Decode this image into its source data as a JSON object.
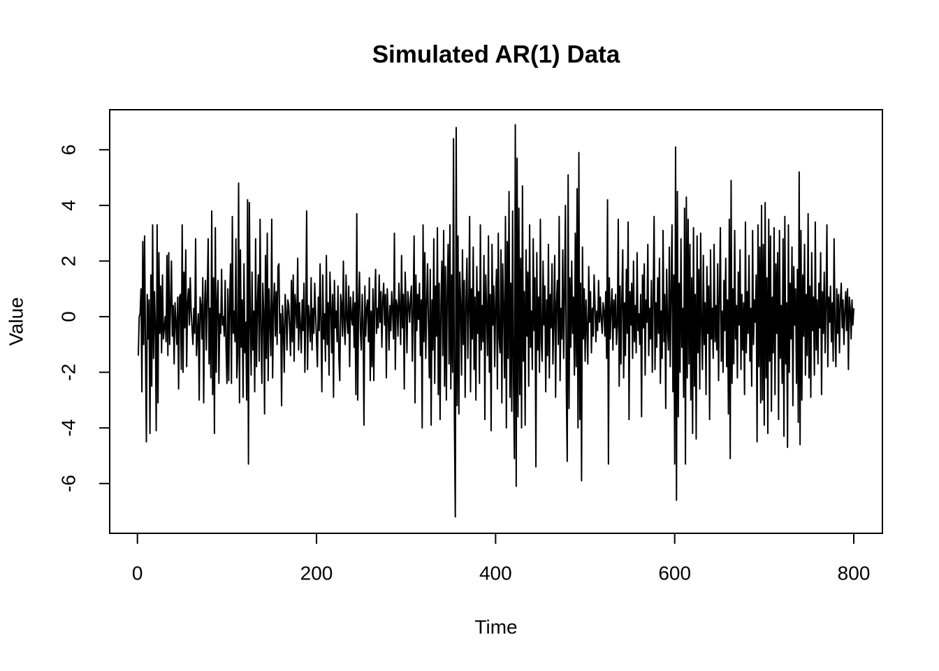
{
  "chart_data": {
    "type": "line",
    "title": "Simulated AR(1) Data",
    "xlabel": "Time",
    "ylabel": "Value",
    "color": "#000000",
    "xlim": [
      -30.96,
      831.96
    ],
    "xticks": [
      0,
      200,
      400,
      600,
      800
    ],
    "ylim": [
      -7.79,
      7.44
    ],
    "yticks": [
      -6,
      -4,
      -2,
      0,
      2,
      4,
      6
    ],
    "values": [
      -1.4,
      0.0,
      0.1,
      1.0,
      -2.7,
      2.7,
      -1.0,
      2.9,
      -1.1,
      -4.5,
      0.8,
      -0.8,
      0.6,
      -4.2,
      1.5,
      -2.5,
      3.3,
      -1.5,
      0.9,
      -0.3,
      -4.1,
      3.3,
      -3.1,
      2.3,
      -0.6,
      1.1,
      -1.3,
      1.5,
      -0.8,
      -0.4,
      0.0,
      -0.9,
      2.2,
      -1.4,
      2.3,
      -1.0,
      0.4,
      2.0,
      -0.7,
      0.4,
      -1.7,
      0.5,
      -0.2,
      -1.0,
      0.7,
      -2.6,
      0.7,
      0.8,
      -1.9,
      3.3,
      -2.0,
      1.6,
      -0.4,
      2.4,
      -1.8,
      0.5,
      1.0,
      -0.3,
      1.4,
      0.2,
      -0.4,
      -1.0,
      0.3,
      -0.6,
      2.8,
      -1.4,
      -0.6,
      0.1,
      -3.0,
      0.7,
      0.4,
      -0.8,
      1.4,
      -3.1,
      0.4,
      1.3,
      -1.2,
      0.7,
      2.8,
      -1.7,
      0.3,
      -2.2,
      3.8,
      -2.8,
      1.4,
      -4.2,
      3.2,
      -2.0,
      0.5,
      1.3,
      -2.4,
      0.1,
      -0.6,
      1.7,
      -0.3,
      0.0,
      -0.7,
      1.3,
      -1.1,
      -2.4,
      1.0,
      -2.3,
      0.6,
      1.9,
      -2.4,
      3.6,
      -0.6,
      0.2,
      -0.9,
      2.8,
      -2.2,
      -1.4,
      4.8,
      -3.1,
      2.4,
      -1.1,
      0.6,
      -2.9,
      1.9,
      -1.3,
      -0.2,
      -3.0,
      4.2,
      -5.3,
      4.1,
      -0.1,
      -2.1,
      1.6,
      -1.2,
      0.2,
      -2.7,
      2.8,
      -1.8,
      0.4,
      1.5,
      -1.6,
      3.5,
      -0.5,
      -2.4,
      1.2,
      0.2,
      -3.5,
      2.2,
      -1.5,
      3.0,
      -2.3,
      1.0,
      -0.2,
      -1.4,
      3.5,
      -2.2,
      0.3,
      1.2,
      -0.7,
      0.9,
      -1.0,
      1.8,
      1.9,
      -0.6,
      0.1,
      -3.2,
      0.4,
      -0.4,
      -2.0,
      0.8,
      0.2,
      -1.2,
      0.6,
      0.4,
      -0.4,
      -1.4,
      1.3,
      -0.9,
      1.5,
      -1.6,
      0.8,
      0.3,
      -0.4,
      2.1,
      -1.2,
      0.5,
      -0.3,
      -1.3,
      0.6,
      -0.5,
      1.2,
      -2.0,
      0.0,
      3.8,
      -1.9,
      0.4,
      -0.1,
      -0.9,
      1.4,
      -1.2,
      0.3,
      -0.6,
      1.2,
      0.1,
      -0.8,
      -1.8,
      0.7,
      -0.5,
      1.9,
      -0.3,
      -2.7,
      1.5,
      -0.8,
      0.1,
      -1.6,
      2.2,
      -1.0,
      0.5,
      -2.1,
      1.6,
      0.4,
      -1.3,
      0.8,
      -2.9,
      1.3,
      -0.4,
      0.2,
      -0.9,
      1.1,
      -1.5,
      -2.3,
      0.8,
      0.4,
      -0.7,
      2.0,
      -0.4,
      -1.0,
      1.5,
      -0.1,
      -0.6,
      1.1,
      -1.8,
      0.7,
      0.0,
      -0.3,
      0.9,
      -1.1,
      0.5,
      -2.8,
      3.7,
      -3.0,
      0.4,
      1.6,
      -0.5,
      -1.2,
      0.8,
      -0.2,
      -3.9,
      1.1,
      -0.7,
      0.3,
      0.6,
      -0.9,
      1.4,
      -2.3,
      0.2,
      -1.8,
      1.0,
      -2.3,
      0.5,
      1.7,
      -0.6,
      0.3,
      -0.4,
      1.5,
      -0.2,
      0.9,
      -1.1,
      0.6,
      1.2,
      -0.3,
      0.8,
      -2.2,
      1.0,
      0.1,
      -1.2,
      0.4,
      -0.5,
      0.9,
      0.2,
      -0.8,
      3.0,
      -1.9,
      0.6,
      0.4,
      -0.7,
      1.2,
      0.3,
      -1.0,
      2.2,
      -0.4,
      0.8,
      -2.6,
      1.6,
      0.5,
      -1.3,
      0.9,
      0.4,
      -0.2,
      0.7,
      1.1,
      -1.6,
      0.3,
      2.9,
      -3.1,
      1.5,
      -0.5,
      0.8,
      -0.1,
      1.2,
      -1.4,
      0.6,
      -4.0,
      3.3,
      -0.9,
      2.3,
      -1.5,
      0.4,
      1.9,
      -0.3,
      -2.2,
      1.7,
      -3.9,
      0.6,
      -1.2,
      2.8,
      -2.4,
      1.1,
      -0.7,
      3.2,
      -2.8,
      1.2,
      -3.7,
      0.4,
      2.0,
      -1.4,
      3.1,
      -2.5,
      1.8,
      -3.0,
      0.9,
      2.6,
      -1.7,
      3.3,
      -2.6,
      1.5,
      -2.0,
      6.4,
      -3.7,
      -7.2,
      6.8,
      -3.2,
      2.9,
      -3.5,
      1.6,
      0.4,
      -2.1,
      2.4,
      -1.0,
      1.3,
      -2.9,
      0.6,
      2.1,
      -1.5,
      0.3,
      3.6,
      -2.7,
      1.0,
      -0.8,
      2.5,
      -1.9,
      0.7,
      -3.0,
      1.8,
      -0.6,
      0.9,
      -2.4,
      3.3,
      -1.2,
      0.4,
      -0.9,
      2.2,
      -3.7,
      1.5,
      0.2,
      -1.4,
      2.9,
      -2.0,
      0.8,
      -4.1,
      2.6,
      -0.3,
      1.1,
      -1.8,
      0.5,
      1.7,
      -2.6,
      3.0,
      -0.8,
      -1.3,
      2.4,
      -3.1,
      1.9,
      0.3,
      -2.2,
      3.6,
      -4.0,
      2.7,
      -1.5,
      4.5,
      -2.9,
      1.2,
      -3.4,
      3.8,
      -2.3,
      -5.1,
      6.9,
      -6.1,
      5.7,
      -3.6,
      3.9,
      -2.8,
      2.1,
      -4.0,
      4.7,
      -1.6,
      0.9,
      -3.9,
      2.4,
      -0.7,
      1.6,
      -2.5,
      3.3,
      -1.1,
      0.2,
      -1.9,
      2.8,
      -0.5,
      1.4,
      -5.4,
      2.3,
      -1.2,
      0.7,
      -2.0,
      3.5,
      -0.9,
      -1.6,
      2.0,
      -0.3,
      1.1,
      -2.7,
      0.6,
      -1.4,
      2.6,
      -2.2,
      0.8,
      -0.4,
      1.9,
      -1.7,
      -0.1,
      2.2,
      -2.9,
      0.5,
      1.3,
      -1.0,
      3.6,
      -2.3,
      0.3,
      -0.8,
      2.4,
      -1.5,
      0.9,
      4.0,
      -2.6,
      -5.2,
      5.1,
      -3.3,
      1.4,
      -1.1,
      2.0,
      -0.6,
      0.7,
      -2.1,
      3.0,
      -1.8,
      4.6,
      -4.0,
      5.9,
      -3.7,
      1.2,
      -5.9,
      2.5,
      -0.8,
      1.0,
      -1.6,
      0.6,
      -0.4,
      -1.7,
      1.8,
      -0.2,
      0.9,
      -1.3,
      0.3,
      -0.7,
      1.5,
      0.4,
      -0.9,
      0.2,
      -0.5,
      1.3,
      -0.2,
      0.7,
      -0.1,
      -0.6,
      0.5,
      0.2,
      -0.7,
      0.9,
      -1.5,
      4.2,
      -5.3,
      1.4,
      -0.8,
      0.3,
      1.0,
      -1.2,
      0.6,
      -0.4,
      0.8,
      -1.0,
      -0.3,
      3.5,
      -2.5,
      1.1,
      -1.7,
      0.7,
      2.4,
      -2.2,
      0.5,
      -1.4,
      1.7,
      -0.6,
      3.4,
      -3.7,
      0.9,
      -0.3,
      1.2,
      -1.5,
      2.0,
      -0.9,
      0.4,
      -1.3,
      2.3,
      -0.5,
      0.1,
      -1.0,
      0.8,
      -3.6,
      1.5,
      -0.4,
      1.9,
      -2.1,
      0.6,
      -0.2,
      2.6,
      -1.4,
      0.3,
      -0.8,
      1.3,
      -2.0,
      0.7,
      3.6,
      -1.9,
      0.5,
      -1.1,
      1.4,
      -0.6,
      2.1,
      -2.4,
      0.2,
      -1.5,
      3.1,
      -0.9,
      0.8,
      -3.3,
      1.7,
      -0.4,
      -1.2,
      2.5,
      -1.8,
      0.9,
      3.3,
      -2.7,
      1.5,
      -5.3,
      6.1,
      -6.6,
      4.5,
      -3.6,
      1.2,
      -2.0,
      2.8,
      -1.1,
      0.3,
      -2.9,
      3.9,
      -5.3,
      4.3,
      -2.2,
      3.5,
      -1.7,
      2.6,
      -3.0,
      1.4,
      -4.2,
      3.2,
      -2.5,
      0.8,
      -4.4,
      2.9,
      -1.3,
      1.7,
      -2.6,
      3.0,
      -0.4,
      -1.9,
      2.2,
      -1.0,
      0.5,
      -2.8,
      1.8,
      -0.6,
      1.1,
      -3.7,
      2.4,
      -0.8,
      0.3,
      -1.5,
      2.6,
      -0.9,
      0.4,
      -1.2,
      1.9,
      -2.3,
      0.7,
      3.2,
      -1.6,
      0.2,
      -2.0,
      1.3,
      -0.5,
      2.1,
      -1.8,
      0.6,
      -3.5,
      3.5,
      -5.1,
      4.9,
      -2.4,
      1.0,
      -1.7,
      3.1,
      -0.8,
      0.4,
      -2.2,
      1.6,
      -0.3,
      2.4,
      -1.9,
      0.8,
      -1.2,
      0.5,
      -2.8,
      3.4,
      -1.3,
      0.9,
      -0.6,
      2.2,
      -1.6,
      0.3,
      -2.5,
      3.1,
      -1.0,
      0.6,
      -0.2,
      1.5,
      -4.5,
      3.3,
      -1.8,
      2.5,
      -3.1,
      4.0,
      -3.0,
      2.6,
      -3.9,
      4.1,
      -2.2,
      1.4,
      -4.2,
      3.5,
      -1.6,
      2.9,
      -3.4,
      0.7,
      -1.3,
      3.2,
      -2.8,
      1.9,
      -0.6,
      2.3,
      -3.7,
      3.1,
      -1.5,
      0.4,
      -2.4,
      2.8,
      -4.3,
      3.6,
      -1.7,
      0.5,
      -4.7,
      3.3,
      -2.0,
      1.2,
      -0.8,
      2.5,
      -3.2,
      1.8,
      -0.3,
      1.0,
      -2.4,
      1.7,
      -3.8,
      5.2,
      -4.6,
      3.1,
      -3.0,
      1.5,
      -0.7,
      2.6,
      -2.1,
      0.8,
      -1.4,
      3.7,
      -2.2,
      1.1,
      -2.9,
      2.3,
      -0.5,
      0.7,
      -2.1,
      3.4,
      -1.2,
      0.6,
      -1.7,
      1.2,
      -0.4,
      2.3,
      -2.8,
      0.9,
      -0.6,
      1.6,
      -1.3,
      0.4,
      3.3,
      -1.8,
      0.7,
      -0.2,
      1.1,
      -0.9,
      0.5,
      -1.6,
      2.8,
      -0.3,
      -1.8,
      1.0,
      -0.6,
      0.8,
      -1.3,
      0.5,
      1.2,
      -0.4,
      0.6,
      -1.0,
      0.2,
      0.9,
      -0.5,
      1.0,
      -1.9,
      0.7,
      0.3,
      -0.8,
      0.6,
      -0.3,
      0.3
    ]
  }
}
